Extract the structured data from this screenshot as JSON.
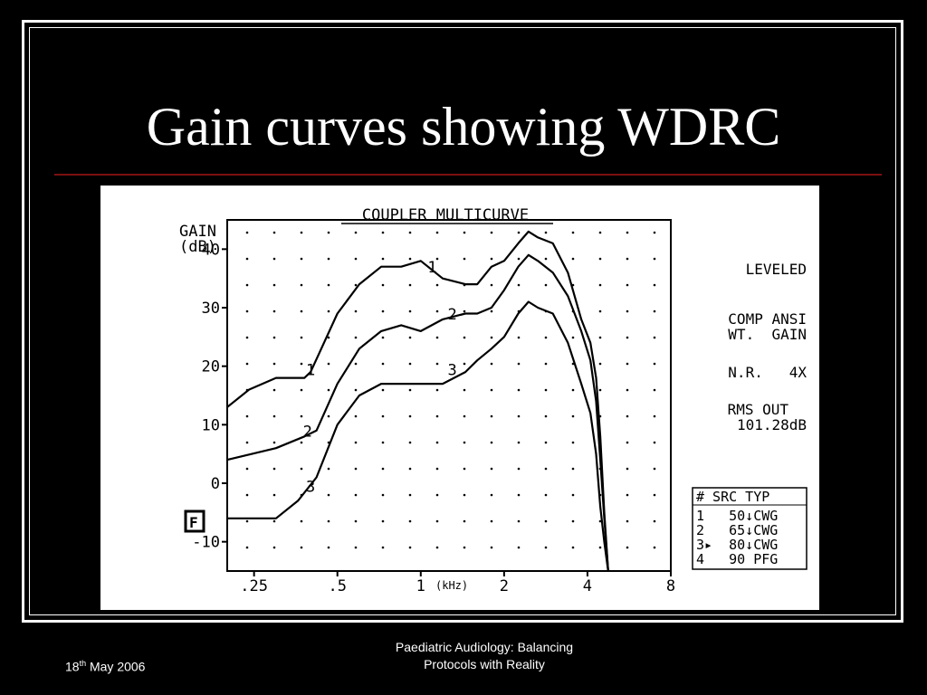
{
  "slide": {
    "title": "Gain curves showing WDRC",
    "footer_date_day": "18",
    "footer_date_suffix": "th",
    "footer_date_rest": " May 2006",
    "footer_center_line1": "Paediatric Audiology: Balancing",
    "footer_center_line2": "Protocols with Reality"
  },
  "chart_data": {
    "type": "line",
    "title": "COUPLER MULTICURVE",
    "ylabel_line1": "GAIN",
    "ylabel_line2": "(dB)",
    "xlabel_unit": "(kHz)",
    "x_scale": "log",
    "xlim": [
      0.2,
      8
    ],
    "ylim": [
      -15,
      45
    ],
    "y_ticks": [
      40,
      30,
      20,
      10,
      0,
      -10
    ],
    "y_tick_labels": [
      "40",
      "30",
      "20",
      "10",
      "0",
      "-10"
    ],
    "x_ticks": [
      0.25,
      0.5,
      1,
      2,
      4,
      8
    ],
    "x_tick_labels": [
      ".25",
      ".5",
      "1",
      "2",
      "4",
      "8"
    ],
    "grid": "dotted",
    "series": [
      {
        "name": "1",
        "label_at": [
          [
            0.4,
            18.5
          ],
          [
            1.1,
            36
          ]
        ],
        "x": [
          0.2,
          0.24,
          0.3,
          0.38,
          0.4,
          0.5,
          0.6,
          0.72,
          0.85,
          1.0,
          1.2,
          1.45,
          1.6,
          1.8,
          2.0,
          2.25,
          2.45,
          2.65,
          3.0,
          3.4,
          3.8,
          4.1,
          4.3,
          4.45,
          4.6,
          4.75
        ],
        "y": [
          13,
          16,
          18,
          18,
          19,
          29,
          34,
          37,
          37,
          38,
          35,
          34,
          34,
          37,
          38,
          41,
          43,
          42,
          41,
          36,
          28,
          24,
          18,
          8,
          -5,
          -15
        ]
      },
      {
        "name": "2",
        "label_at": [
          [
            0.39,
            8
          ],
          [
            1.3,
            28
          ]
        ],
        "x": [
          0.2,
          0.3,
          0.38,
          0.42,
          0.5,
          0.6,
          0.72,
          0.85,
          1.0,
          1.2,
          1.45,
          1.6,
          1.8,
          2.0,
          2.25,
          2.45,
          2.65,
          3.0,
          3.4,
          3.8,
          4.1,
          4.3,
          4.45,
          4.6,
          4.75
        ],
        "y": [
          4,
          6,
          8,
          9,
          17,
          23,
          26,
          27,
          26,
          28,
          29,
          29,
          30,
          33,
          37,
          39,
          38,
          36,
          32,
          26,
          21,
          14,
          4,
          -6,
          -15
        ]
      },
      {
        "name": "3",
        "label_at": [
          [
            0.4,
            -1.5
          ],
          [
            1.3,
            18.5
          ]
        ],
        "x": [
          0.2,
          0.3,
          0.36,
          0.42,
          0.5,
          0.6,
          0.72,
          0.85,
          1.0,
          1.2,
          1.45,
          1.6,
          1.8,
          2.0,
          2.25,
          2.45,
          2.65,
          3.0,
          3.4,
          3.8,
          4.1,
          4.3,
          4.45,
          4.6,
          4.75
        ],
        "y": [
          -6,
          -6,
          -3,
          1,
          10,
          15,
          17,
          17,
          17,
          17,
          19,
          21,
          23,
          25,
          29,
          31,
          30,
          29,
          24,
          17,
          12,
          5,
          -4,
          -10,
          -15
        ]
      }
    ],
    "side_labels": {
      "leveled": "LEVELED",
      "comp": "COMP ANSI",
      "wt": "WT.  GAIN",
      "nr": "N.R.   4X",
      "rms": "RMS OUT",
      "rms_value": "101.28dB",
      "f_key": "F"
    },
    "legend_table": {
      "header": "# SRC TYP",
      "rows": [
        "1   50↓CWG",
        "2   65↓CWG",
        "3▸  80↓CWG",
        "4   90 PFG"
      ]
    }
  }
}
